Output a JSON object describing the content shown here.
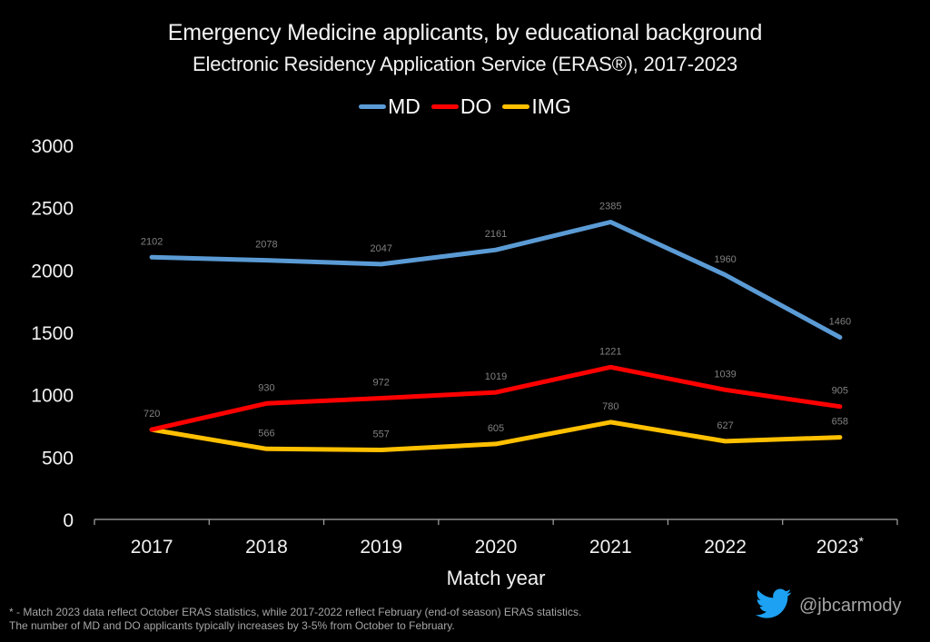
{
  "chart_data": {
    "type": "line",
    "title": "Emergency Medicine applicants, by educational background",
    "subtitle": "Electronic Residency Application Service (ERAS®), 2017-2023",
    "xlabel": "Match year",
    "ylabel": "",
    "categories": [
      "2017",
      "2018",
      "2019",
      "2020",
      "2021",
      "2022",
      "2023"
    ],
    "category_annotations": {
      "2023": "*"
    },
    "ylim": [
      0,
      3000
    ],
    "yticks": [
      "0",
      "500",
      "1000",
      "1500",
      "2000",
      "2500",
      "3000"
    ],
    "ytick_values": [
      0,
      500,
      1000,
      1500,
      2000,
      2500,
      3000
    ],
    "grid": false,
    "legend_position": "top-center",
    "data_labels": true,
    "series": [
      {
        "name": "MD",
        "color": "#5B9BD5",
        "values": [
          2102,
          2078,
          2047,
          2161,
          2385,
          1960,
          1460
        ]
      },
      {
        "name": "DO",
        "color": "#FF0000",
        "values": [
          720,
          930,
          972,
          1019,
          1221,
          1039,
          905
        ]
      },
      {
        "name": "IMG",
        "color": "#FFC000",
        "values": [
          720,
          566,
          557,
          605,
          780,
          627,
          658
        ]
      }
    ]
  },
  "footnote": {
    "line1": "* - Match 2023 data reflect October ERAS statistics, while 2017-2022 reflect February (end-of season) ERAS statistics.",
    "line2": "The number of MD and DO applicants typically increases by 3-5% from October to February."
  },
  "credit": {
    "icon": "twitter-bird-icon",
    "handle": "@jbcarmody",
    "icon_color": "#1DA1F2"
  },
  "colors": {
    "background": "#000000",
    "axis": "#A6A6A6",
    "data_label": "#808080",
    "text": "#F2F2F2"
  }
}
